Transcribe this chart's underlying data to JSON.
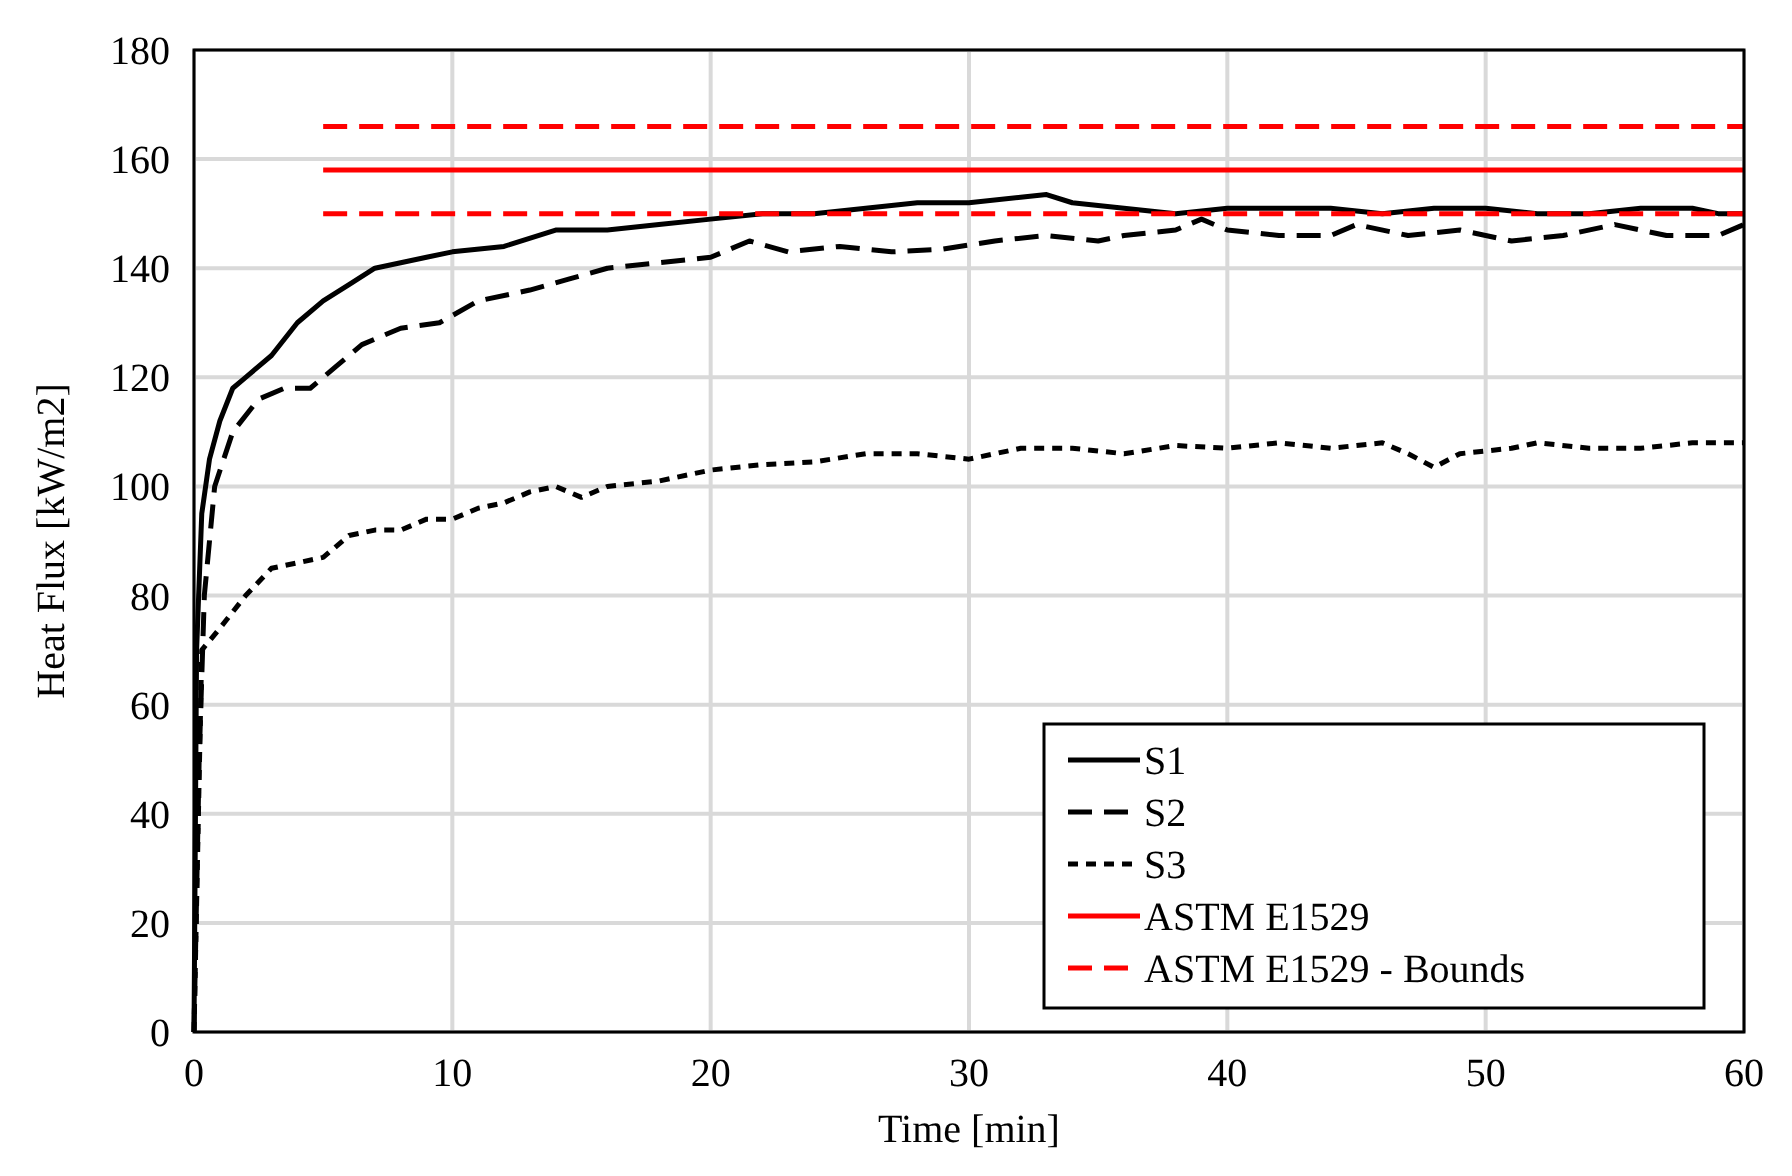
{
  "chart_data": {
    "type": "line",
    "xlabel": "Time [min]",
    "ylabel": "Heat Flux [kW/m2]",
    "xlim": [
      0,
      60
    ],
    "xticks": [
      0,
      10,
      20,
      30,
      40,
      50,
      60
    ],
    "ylim": [
      0,
      180
    ],
    "yticks": [
      0,
      20,
      40,
      60,
      80,
      100,
      120,
      140,
      160,
      180
    ],
    "grid": true,
    "legend": "bottom right",
    "series": [
      {
        "name": "S1",
        "color": "#000000",
        "line_style": "solid",
        "x": [
          0,
          0.1,
          0.3,
          0.6,
          1,
          1.5,
          2,
          3,
          4,
          5,
          6,
          7,
          8,
          9,
          10,
          12,
          14,
          16,
          18,
          20,
          22,
          24,
          26,
          28,
          30,
          32,
          33,
          34,
          36,
          38,
          40,
          42,
          44,
          46,
          48,
          50,
          52,
          54,
          56,
          58,
          59,
          60
        ],
        "values": [
          0,
          70,
          95,
          105,
          112,
          118,
          120,
          124,
          130,
          134,
          137,
          140,
          141,
          142,
          143,
          144,
          147,
          147,
          148,
          149,
          150,
          150,
          151,
          152,
          152,
          153,
          153.5,
          152,
          151,
          150,
          151,
          151,
          151,
          150,
          151,
          151,
          150,
          150,
          151,
          151,
          150,
          150
        ]
      },
      {
        "name": "S2",
        "color": "#000000",
        "line_style": "dashed",
        "x": [
          0,
          0.2,
          0.4,
          0.8,
          1.5,
          2.5,
          3.5,
          4.5,
          5.5,
          6.5,
          8,
          9.5,
          11,
          13,
          14.5,
          16,
          18,
          20,
          21.5,
          23,
          25,
          27,
          29,
          31,
          33,
          35,
          36,
          38,
          39,
          40,
          42,
          44,
          45,
          47,
          49,
          51,
          53,
          55,
          57,
          59,
          60
        ],
        "values": [
          0,
          50,
          80,
          100,
          110,
          116,
          118,
          118,
          122,
          126,
          129,
          130,
          134,
          136,
          138,
          140,
          141,
          142,
          145,
          143,
          144,
          143,
          143.5,
          145,
          146,
          145,
          146,
          147,
          149,
          147,
          146,
          146,
          148,
          146,
          147,
          145,
          146,
          148,
          146,
          146,
          148
        ]
      },
      {
        "name": "S3",
        "color": "#000000",
        "line_style": "dotted",
        "x": [
          0,
          0.3,
          1,
          2,
          3,
          4,
          5,
          6,
          7,
          8,
          9,
          10,
          11,
          12,
          13,
          14,
          15,
          16,
          18,
          20,
          22,
          24,
          26,
          28,
          30,
          32,
          34,
          36,
          38,
          40,
          42,
          44,
          46,
          47,
          48,
          49,
          51,
          52,
          54,
          56,
          58,
          60
        ],
        "values": [
          0,
          70,
          74,
          80,
          85,
          86,
          87,
          91,
          92,
          92,
          94,
          94,
          96,
          97,
          99,
          100,
          98,
          100,
          101,
          103,
          104,
          104.5,
          106,
          106,
          105,
          107,
          107,
          106,
          107.5,
          107,
          108,
          107,
          108,
          106,
          103.5,
          106,
          107,
          108,
          107,
          107,
          108,
          108
        ]
      },
      {
        "name": "ASTM E1529",
        "color": "#ff0000",
        "line_style": "solid",
        "x": [
          5,
          60
        ],
        "values": [
          158,
          158
        ]
      },
      {
        "name": "ASTM E1529 - Bounds",
        "color": "#ff0000",
        "line_style": "dashed",
        "x": [
          5,
          60
        ],
        "values": [
          166,
          166
        ]
      },
      {
        "color": "#ff0000",
        "line_style": "dashed",
        "x": [
          5,
          60
        ],
        "values": [
          150,
          150
        ]
      }
    ]
  }
}
